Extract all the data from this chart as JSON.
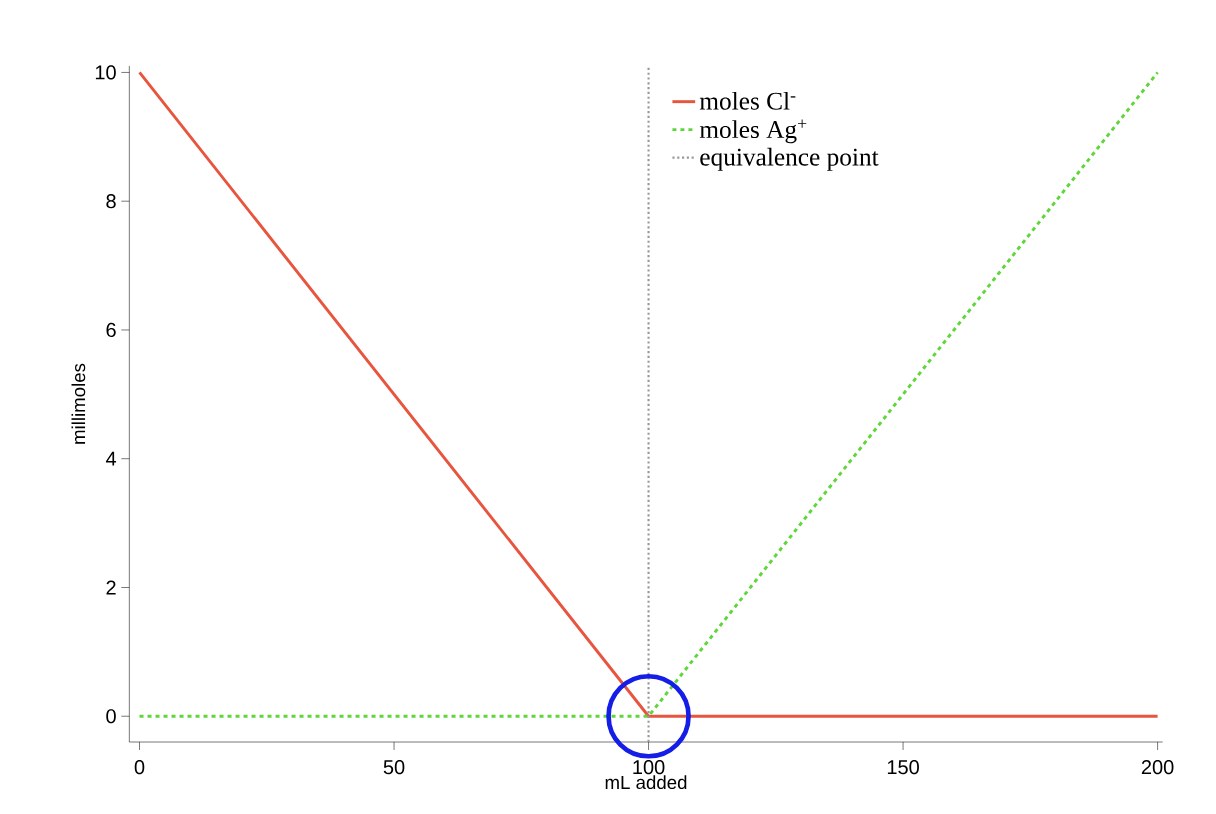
{
  "chart_data": {
    "type": "line",
    "xlabel": "mL added",
    "ylabel": "millimoles",
    "x": [
      0,
      100,
      200
    ],
    "series": [
      {
        "name": "moles Cl$^{-}$",
        "color": "#e8553f",
        "values": [
          10,
          0,
          0
        ],
        "line_style": "solid"
      },
      {
        "name": "moles Ag$^{+}$",
        "color": "#5fd63a",
        "values": [
          0,
          0,
          10
        ],
        "line_style": "dashed"
      }
    ],
    "ref_lines": [
      {
        "axis": "x",
        "value": 100,
        "label": "equivalence point",
        "color": "#999999",
        "line_style": "dotted"
      }
    ],
    "xlim": [
      -2,
      201
    ],
    "ylim": [
      -0.4,
      10.1
    ],
    "xticks": [
      0,
      50,
      100,
      150,
      200
    ],
    "yticks": [
      0,
      2,
      4,
      6,
      8,
      10
    ],
    "grid": false,
    "legend": "top right",
    "marker": "none"
  }
}
